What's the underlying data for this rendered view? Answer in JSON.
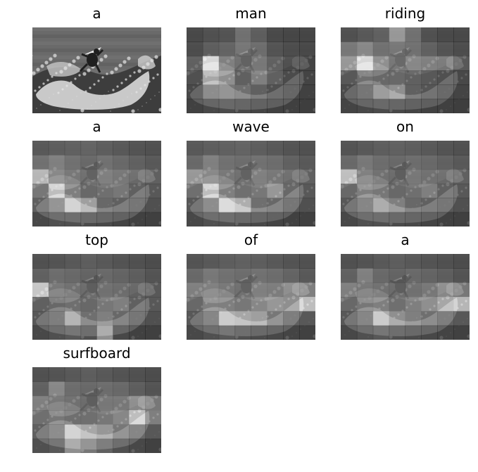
{
  "panels": [
    {
      "word": "a",
      "original": true
    },
    {
      "word": "man",
      "attention": [
        [
          0.05,
          0.1,
          0.12,
          0.3,
          0.18,
          0.06,
          0.04,
          0.03
        ],
        [
          0.08,
          0.18,
          0.22,
          0.34,
          0.28,
          0.12,
          0.08,
          0.05
        ],
        [
          0.2,
          0.95,
          0.4,
          0.3,
          0.35,
          0.2,
          0.1,
          0.08
        ],
        [
          0.15,
          0.7,
          0.55,
          0.25,
          0.45,
          0.25,
          0.12,
          0.08
        ],
        [
          0.1,
          0.35,
          0.4,
          0.35,
          0.25,
          0.15,
          0.1,
          0.06
        ],
        [
          0.06,
          0.1,
          0.12,
          0.1,
          0.08,
          0.06,
          0.05,
          0.04
        ]
      ]
    },
    {
      "word": "riding",
      "attention": [
        [
          0.1,
          0.15,
          0.2,
          0.55,
          0.3,
          0.1,
          0.06,
          0.05
        ],
        [
          0.35,
          0.45,
          0.3,
          0.35,
          0.3,
          0.2,
          0.12,
          0.08
        ],
        [
          0.55,
          0.95,
          0.5,
          0.35,
          0.45,
          0.4,
          0.38,
          0.2
        ],
        [
          0.2,
          0.35,
          0.3,
          0.3,
          0.25,
          0.2,
          0.15,
          0.1
        ],
        [
          0.12,
          0.2,
          0.45,
          0.55,
          0.25,
          0.18,
          0.12,
          0.08
        ],
        [
          0.08,
          0.1,
          0.12,
          0.1,
          0.08,
          0.06,
          0.05,
          0.04
        ]
      ]
    },
    {
      "word": "a",
      "attention": [
        [
          0.15,
          0.18,
          0.2,
          0.22,
          0.18,
          0.15,
          0.12,
          0.1
        ],
        [
          0.3,
          0.4,
          0.3,
          0.25,
          0.3,
          0.25,
          0.2,
          0.15
        ],
        [
          0.75,
          0.45,
          0.35,
          0.3,
          0.4,
          0.35,
          0.3,
          0.25
        ],
        [
          0.4,
          0.85,
          0.45,
          0.3,
          0.35,
          0.4,
          0.25,
          0.2
        ],
        [
          0.25,
          0.4,
          0.8,
          0.65,
          0.3,
          0.25,
          0.2,
          0.15
        ],
        [
          0.1,
          0.15,
          0.15,
          0.12,
          0.1,
          0.08,
          0.06,
          0.05
        ]
      ]
    },
    {
      "word": "wave",
      "attention": [
        [
          0.15,
          0.18,
          0.2,
          0.22,
          0.18,
          0.15,
          0.12,
          0.1
        ],
        [
          0.25,
          0.4,
          0.3,
          0.28,
          0.3,
          0.28,
          0.2,
          0.15
        ],
        [
          0.55,
          0.45,
          0.35,
          0.3,
          0.4,
          0.35,
          0.3,
          0.25
        ],
        [
          0.35,
          0.85,
          0.45,
          0.35,
          0.4,
          0.6,
          0.3,
          0.2
        ],
        [
          0.2,
          0.35,
          0.85,
          0.75,
          0.35,
          0.3,
          0.2,
          0.15
        ],
        [
          0.1,
          0.15,
          0.15,
          0.12,
          0.1,
          0.08,
          0.06,
          0.05
        ]
      ]
    },
    {
      "word": "on",
      "attention": [
        [
          0.12,
          0.15,
          0.18,
          0.2,
          0.18,
          0.15,
          0.12,
          0.1
        ],
        [
          0.25,
          0.35,
          0.28,
          0.25,
          0.28,
          0.25,
          0.2,
          0.15
        ],
        [
          0.8,
          0.4,
          0.3,
          0.28,
          0.35,
          0.3,
          0.3,
          0.25
        ],
        [
          0.3,
          0.45,
          0.4,
          0.3,
          0.35,
          0.45,
          0.25,
          0.2
        ],
        [
          0.2,
          0.3,
          0.55,
          0.45,
          0.3,
          0.25,
          0.2,
          0.15
        ],
        [
          0.1,
          0.15,
          0.15,
          0.12,
          0.1,
          0.08,
          0.06,
          0.05
        ]
      ]
    },
    {
      "word": "top",
      "attention": [
        [
          0.1,
          0.12,
          0.15,
          0.18,
          0.15,
          0.12,
          0.1,
          0.08
        ],
        [
          0.2,
          0.28,
          0.25,
          0.22,
          0.25,
          0.22,
          0.18,
          0.12
        ],
        [
          0.85,
          0.35,
          0.3,
          0.28,
          0.3,
          0.28,
          0.25,
          0.2
        ],
        [
          0.25,
          0.3,
          0.35,
          0.3,
          0.4,
          0.45,
          0.25,
          0.2
        ],
        [
          0.2,
          0.25,
          0.6,
          0.35,
          0.45,
          0.3,
          0.2,
          0.15
        ],
        [
          0.1,
          0.15,
          0.2,
          0.15,
          0.55,
          0.1,
          0.06,
          0.05
        ]
      ]
    },
    {
      "word": "of",
      "attention": [
        [
          0.12,
          0.15,
          0.18,
          0.2,
          0.18,
          0.15,
          0.12,
          0.1
        ],
        [
          0.25,
          0.35,
          0.3,
          0.28,
          0.3,
          0.28,
          0.22,
          0.15
        ],
        [
          0.4,
          0.4,
          0.35,
          0.3,
          0.4,
          0.38,
          0.5,
          0.45
        ],
        [
          0.3,
          0.45,
          0.45,
          0.4,
          0.5,
          0.6,
          0.55,
          0.85
        ],
        [
          0.2,
          0.3,
          0.75,
          0.7,
          0.65,
          0.4,
          0.25,
          0.2
        ],
        [
          0.1,
          0.15,
          0.2,
          0.15,
          0.12,
          0.1,
          0.08,
          0.06
        ]
      ]
    },
    {
      "word": "a",
      "attention": [
        [
          0.1,
          0.12,
          0.15,
          0.18,
          0.15,
          0.12,
          0.1,
          0.08
        ],
        [
          0.2,
          0.4,
          0.25,
          0.22,
          0.25,
          0.22,
          0.18,
          0.12
        ],
        [
          0.4,
          0.35,
          0.3,
          0.28,
          0.3,
          0.35,
          0.5,
          0.4
        ],
        [
          0.3,
          0.4,
          0.45,
          0.35,
          0.45,
          0.55,
          0.7,
          0.8
        ],
        [
          0.2,
          0.3,
          0.75,
          0.55,
          0.45,
          0.35,
          0.25,
          0.2
        ],
        [
          0.1,
          0.15,
          0.2,
          0.15,
          0.12,
          0.1,
          0.08,
          0.06
        ]
      ]
    },
    {
      "word": "surfboard",
      "attention": [
        [
          0.1,
          0.12,
          0.15,
          0.18,
          0.15,
          0.12,
          0.1,
          0.08
        ],
        [
          0.2,
          0.45,
          0.28,
          0.25,
          0.28,
          0.25,
          0.18,
          0.12
        ],
        [
          0.4,
          0.35,
          0.3,
          0.28,
          0.35,
          0.35,
          0.5,
          0.4
        ],
        [
          0.35,
          0.4,
          0.35,
          0.35,
          0.4,
          0.5,
          0.85,
          0.45
        ],
        [
          0.25,
          0.35,
          0.8,
          0.7,
          0.6,
          0.4,
          0.3,
          0.2
        ],
        [
          0.15,
          0.2,
          0.55,
          0.4,
          0.25,
          0.15,
          0.1,
          0.06
        ]
      ]
    }
  ]
}
